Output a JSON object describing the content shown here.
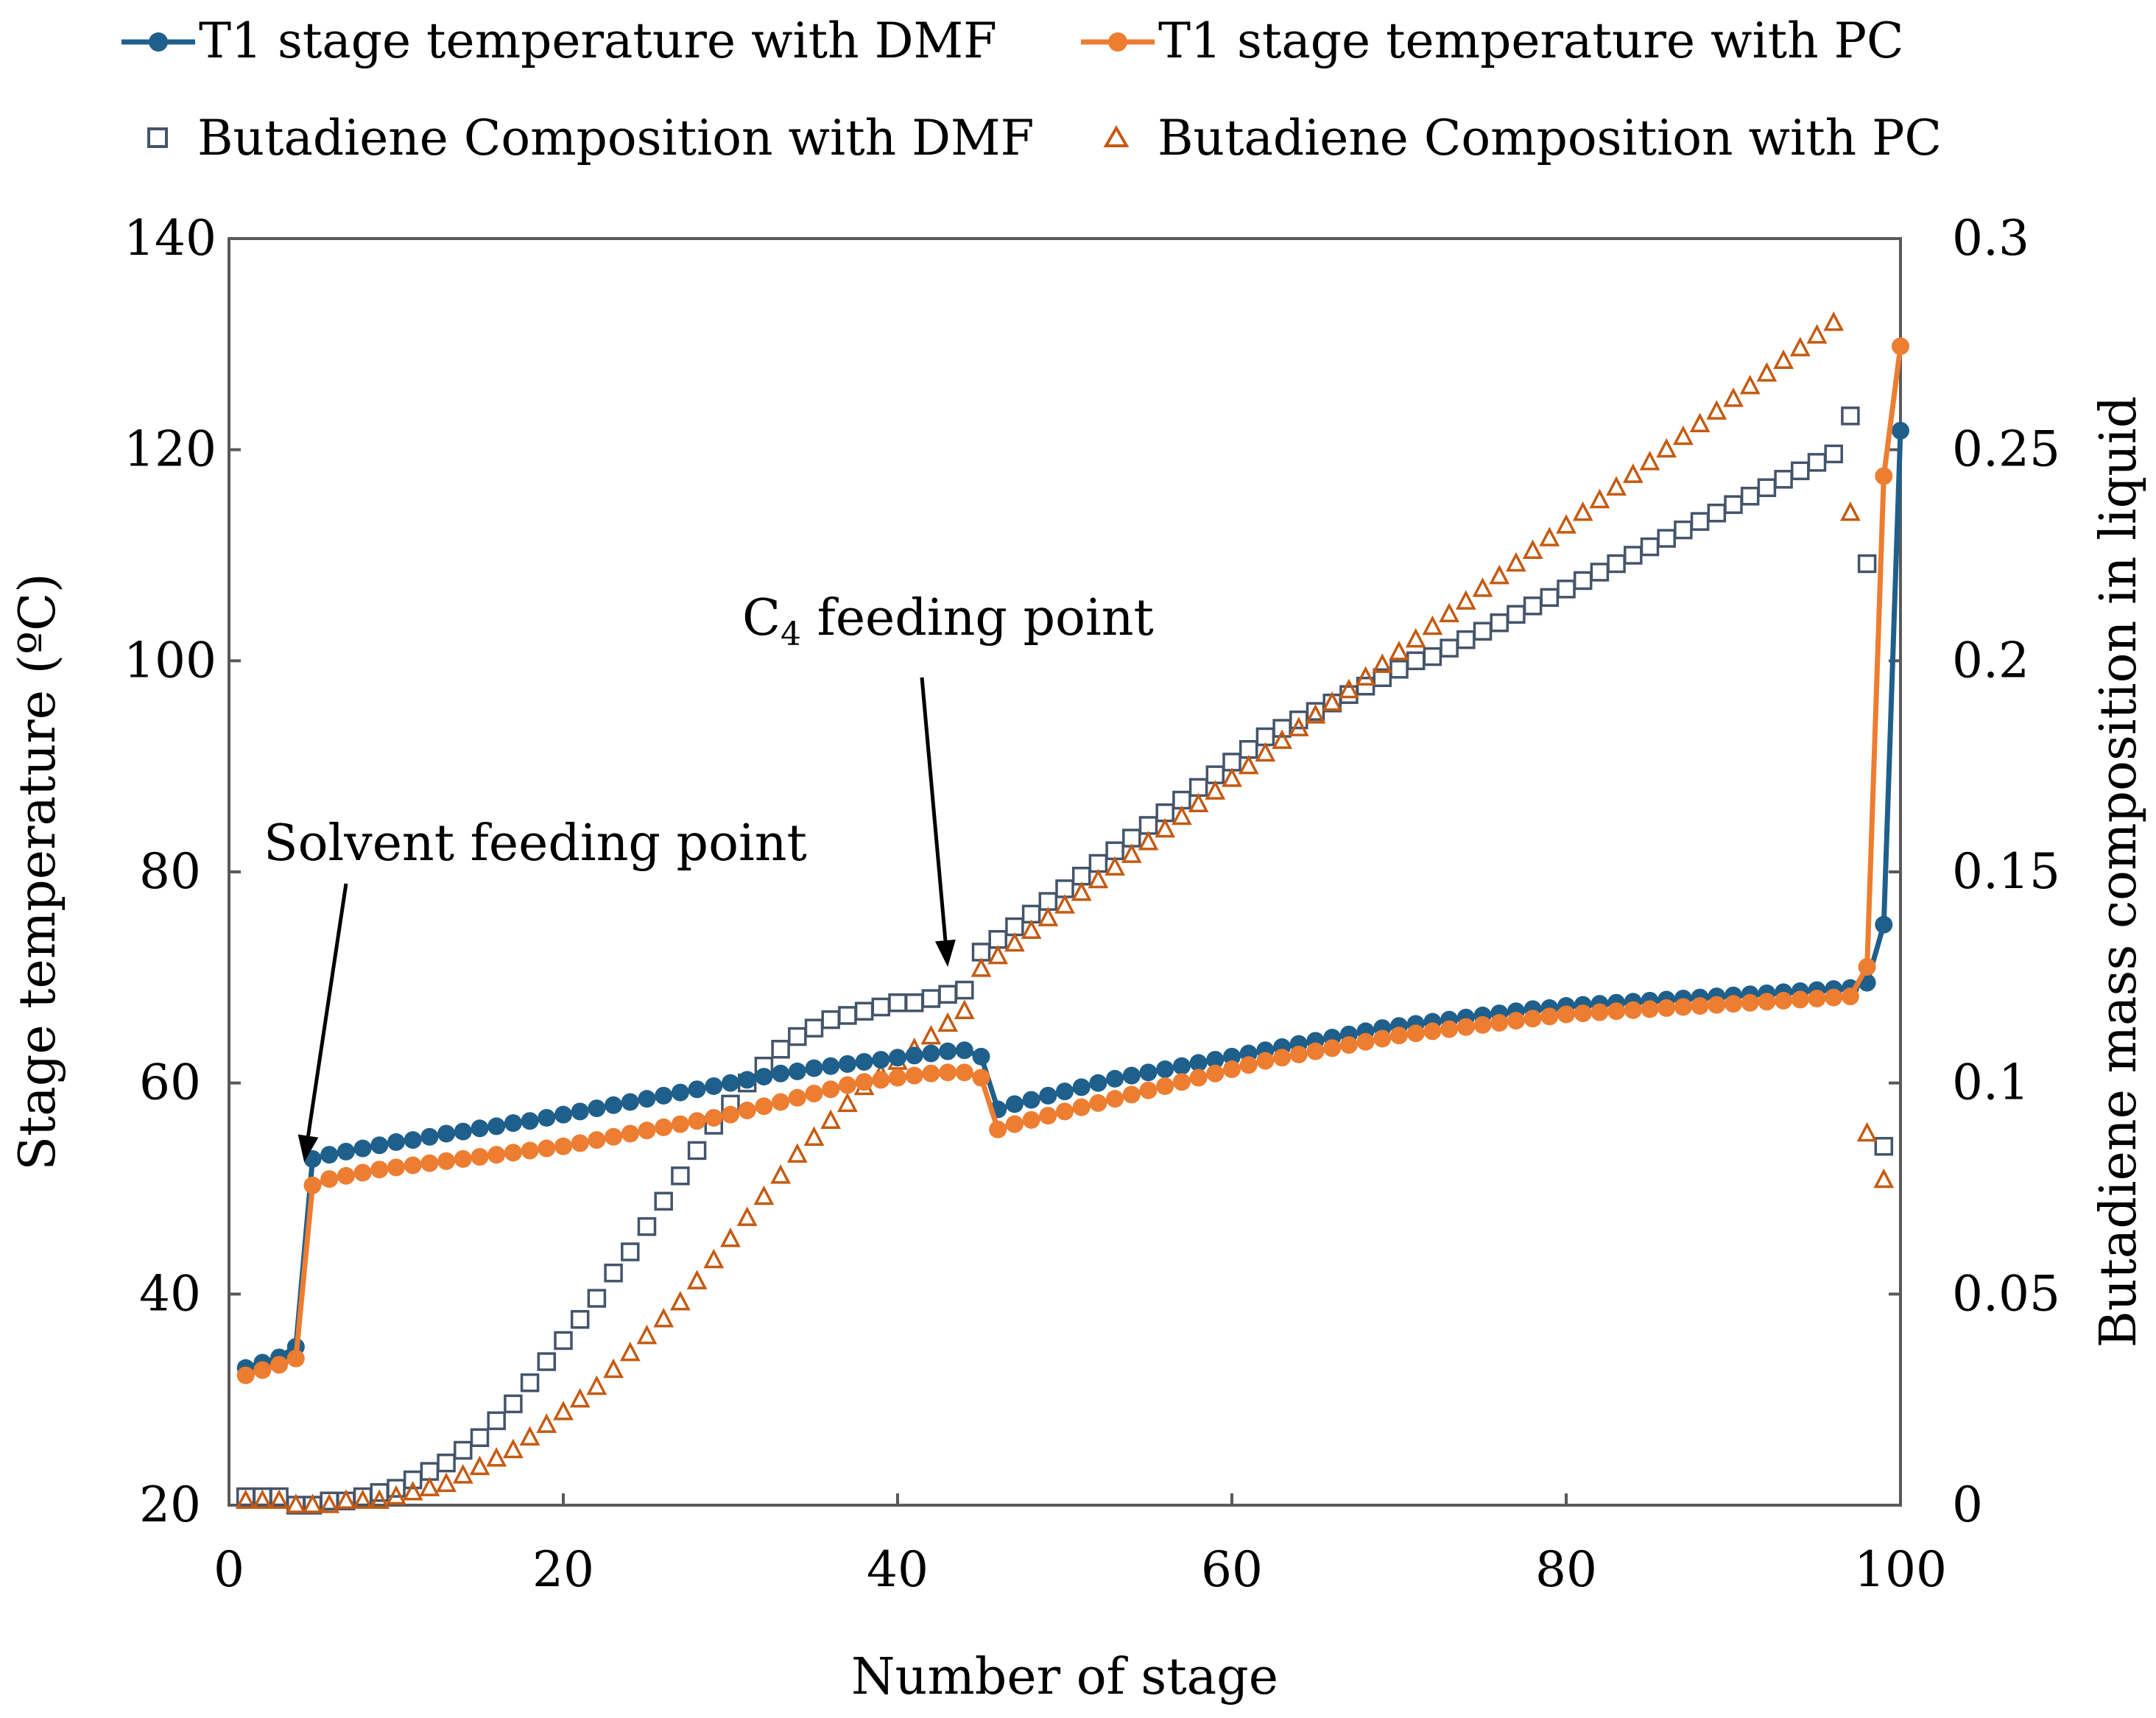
{
  "chart_data": {
    "type": "line",
    "xlabel": "Number of stage",
    "ylabel": "Stage temperature (ºC)",
    "y2label": "Butadiene mass composition in liquid",
    "xlim": [
      0,
      100
    ],
    "ylim": [
      20,
      140
    ],
    "y2lim": [
      0,
      0.3
    ],
    "x_ticks": [
      "0",
      "20",
      "40",
      "60",
      "80",
      "100"
    ],
    "y_ticks": [
      "20",
      "40",
      "60",
      "80",
      "100",
      "120",
      "140"
    ],
    "y2_ticks": [
      "0",
      "0.05",
      "0.1",
      "0.15",
      "0.2",
      "0.25",
      "0.3"
    ],
    "legend_placement": "top",
    "colors": {
      "dmf_temp": "#1f5f8b",
      "pc_temp": "#ed7d31",
      "dmf_comp": "#44546a",
      "pc_comp": "#c55a11"
    },
    "series": [
      {
        "name": "T1 stage temperature with DMF",
        "axis": "left",
        "style": "line-marker",
        "x": [
          1,
          2,
          3,
          4,
          5,
          6,
          7,
          8,
          9,
          10,
          11,
          12,
          13,
          14,
          15,
          16,
          17,
          18,
          19,
          20,
          21,
          22,
          23,
          24,
          25,
          26,
          27,
          28,
          29,
          30,
          31,
          32,
          33,
          34,
          35,
          36,
          37,
          38,
          39,
          40,
          41,
          42,
          43,
          44,
          45,
          46,
          47,
          48,
          49,
          50,
          51,
          52,
          53,
          54,
          55,
          56,
          57,
          58,
          59,
          60,
          61,
          62,
          63,
          64,
          65,
          66,
          67,
          68,
          69,
          70,
          71,
          72,
          73,
          74,
          75,
          76,
          77,
          78,
          79,
          80,
          81,
          82,
          83,
          84,
          85,
          86,
          87,
          88,
          89,
          90,
          91,
          92,
          93,
          94,
          95,
          96,
          97,
          98,
          99,
          100
        ],
        "values": [
          33.0,
          33.5,
          34.0,
          35.0,
          52.8,
          53.2,
          53.5,
          53.8,
          54.1,
          54.4,
          54.6,
          54.9,
          55.2,
          55.4,
          55.7,
          55.9,
          56.2,
          56.4,
          56.7,
          57.0,
          57.3,
          57.6,
          57.9,
          58.2,
          58.5,
          58.8,
          59.1,
          59.4,
          59.7,
          60.0,
          60.3,
          60.6,
          60.9,
          61.1,
          61.4,
          61.6,
          61.8,
          62.0,
          62.2,
          62.4,
          62.6,
          62.8,
          63.0,
          63.1,
          62.5,
          57.5,
          58.0,
          58.4,
          58.8,
          59.2,
          59.6,
          60.0,
          60.4,
          60.7,
          61.0,
          61.3,
          61.6,
          61.9,
          62.2,
          62.5,
          62.8,
          63.1,
          63.4,
          63.7,
          64.0,
          64.3,
          64.6,
          64.9,
          65.2,
          65.4,
          65.6,
          65.8,
          66.0,
          66.2,
          66.4,
          66.6,
          66.8,
          67.0,
          67.1,
          67.3,
          67.4,
          67.5,
          67.6,
          67.7,
          67.8,
          67.9,
          68.0,
          68.1,
          68.2,
          68.3,
          68.4,
          68.5,
          68.6,
          68.7,
          68.8,
          68.9,
          69.0,
          69.5,
          75.0,
          121.8
        ]
      },
      {
        "name": "T1 stage temperature with PC",
        "axis": "left",
        "style": "line-marker",
        "x": [
          1,
          2,
          3,
          4,
          5,
          6,
          7,
          8,
          9,
          10,
          11,
          12,
          13,
          14,
          15,
          16,
          17,
          18,
          19,
          20,
          21,
          22,
          23,
          24,
          25,
          26,
          27,
          28,
          29,
          30,
          31,
          32,
          33,
          34,
          35,
          36,
          37,
          38,
          39,
          40,
          41,
          42,
          43,
          44,
          45,
          46,
          47,
          48,
          49,
          50,
          51,
          52,
          53,
          54,
          55,
          56,
          57,
          58,
          59,
          60,
          61,
          62,
          63,
          64,
          65,
          66,
          67,
          68,
          69,
          70,
          71,
          72,
          73,
          74,
          75,
          76,
          77,
          78,
          79,
          80,
          81,
          82,
          83,
          84,
          85,
          86,
          87,
          88,
          89,
          90,
          91,
          92,
          93,
          94,
          95,
          96,
          97,
          98,
          99,
          100
        ],
        "values": [
          32.3,
          32.8,
          33.3,
          33.9,
          50.3,
          50.9,
          51.2,
          51.5,
          51.8,
          52.0,
          52.2,
          52.4,
          52.6,
          52.8,
          53.0,
          53.2,
          53.4,
          53.6,
          53.8,
          54.0,
          54.3,
          54.6,
          54.9,
          55.2,
          55.5,
          55.8,
          56.1,
          56.4,
          56.7,
          57.0,
          57.4,
          57.8,
          58.2,
          58.6,
          59.0,
          59.4,
          59.8,
          60.1,
          60.3,
          60.5,
          60.7,
          60.9,
          61.0,
          61.0,
          60.5,
          55.6,
          56.1,
          56.5,
          56.9,
          57.3,
          57.7,
          58.1,
          58.5,
          58.9,
          59.3,
          59.7,
          60.1,
          60.5,
          60.9,
          61.3,
          61.7,
          62.1,
          62.4,
          62.7,
          63.0,
          63.3,
          63.6,
          63.9,
          64.2,
          64.5,
          64.7,
          64.9,
          65.1,
          65.3,
          65.5,
          65.7,
          65.9,
          66.1,
          66.3,
          66.5,
          66.6,
          66.7,
          66.8,
          66.9,
          67.0,
          67.1,
          67.2,
          67.3,
          67.4,
          67.5,
          67.6,
          67.7,
          67.8,
          67.9,
          68.0,
          68.1,
          68.2,
          71.0,
          117.5,
          129.8
        ]
      },
      {
        "name": "Butadiene Composition with DMF",
        "axis": "right",
        "style": "marker-square",
        "x": [
          1,
          2,
          3,
          4,
          5,
          6,
          7,
          8,
          9,
          10,
          11,
          12,
          13,
          14,
          15,
          16,
          17,
          18,
          19,
          20,
          21,
          22,
          23,
          24,
          25,
          26,
          27,
          28,
          29,
          30,
          31,
          32,
          33,
          34,
          35,
          36,
          37,
          38,
          39,
          40,
          41,
          42,
          43,
          44,
          45,
          46,
          47,
          48,
          49,
          50,
          51,
          52,
          53,
          54,
          55,
          56,
          57,
          58,
          59,
          60,
          61,
          62,
          63,
          64,
          65,
          66,
          67,
          68,
          69,
          70,
          71,
          72,
          73,
          74,
          75,
          76,
          77,
          78,
          79,
          80,
          81,
          82,
          83,
          84,
          85,
          86,
          87,
          88,
          89,
          90,
          91,
          92,
          93,
          94,
          95,
          96,
          97,
          98,
          99
        ],
        "values": [
          0.002,
          0.002,
          0.002,
          0.0,
          0.0,
          0.001,
          0.001,
          0.002,
          0.003,
          0.004,
          0.006,
          0.008,
          0.01,
          0.013,
          0.016,
          0.02,
          0.024,
          0.029,
          0.034,
          0.039,
          0.044,
          0.049,
          0.055,
          0.06,
          0.066,
          0.072,
          0.078,
          0.084,
          0.09,
          0.095,
          0.1,
          0.104,
          0.108,
          0.111,
          0.113,
          0.115,
          0.116,
          0.117,
          0.118,
          0.119,
          0.119,
          0.12,
          0.121,
          0.122,
          0.131,
          0.134,
          0.137,
          0.14,
          0.143,
          0.146,
          0.149,
          0.152,
          0.155,
          0.158,
          0.161,
          0.164,
          0.167,
          0.17,
          0.173,
          0.176,
          0.179,
          0.182,
          0.184,
          0.186,
          0.188,
          0.19,
          0.192,
          0.194,
          0.196,
          0.198,
          0.2,
          0.201,
          0.203,
          0.205,
          0.207,
          0.209,
          0.211,
          0.213,
          0.215,
          0.217,
          0.219,
          0.221,
          0.223,
          0.225,
          0.227,
          0.229,
          0.231,
          0.233,
          0.235,
          0.237,
          0.239,
          0.241,
          0.243,
          0.245,
          0.247,
          0.249,
          0.258,
          0.223,
          0.085
        ]
      },
      {
        "name": "Butadiene Composition with PC",
        "axis": "right",
        "style": "marker-triangle",
        "x": [
          1,
          2,
          3,
          4,
          5,
          6,
          7,
          8,
          9,
          10,
          11,
          12,
          13,
          14,
          15,
          16,
          17,
          18,
          19,
          20,
          21,
          22,
          23,
          24,
          25,
          26,
          27,
          28,
          29,
          30,
          31,
          32,
          33,
          34,
          35,
          36,
          37,
          38,
          39,
          40,
          41,
          42,
          43,
          44,
          45,
          46,
          47,
          48,
          49,
          50,
          51,
          52,
          53,
          54,
          55,
          56,
          57,
          58,
          59,
          60,
          61,
          62,
          63,
          64,
          65,
          66,
          67,
          68,
          69,
          70,
          71,
          72,
          73,
          74,
          75,
          76,
          77,
          78,
          79,
          80,
          81,
          82,
          83,
          84,
          85,
          86,
          87,
          88,
          89,
          90,
          91,
          92,
          93,
          94,
          95,
          96,
          97,
          98,
          99
        ],
        "values": [
          0.001,
          0.001,
          0.001,
          0.0,
          0.0,
          0.0,
          0.001,
          0.001,
          0.001,
          0.002,
          0.003,
          0.004,
          0.005,
          0.007,
          0.009,
          0.011,
          0.013,
          0.016,
          0.019,
          0.022,
          0.025,
          0.028,
          0.032,
          0.036,
          0.04,
          0.044,
          0.048,
          0.053,
          0.058,
          0.063,
          0.068,
          0.073,
          0.078,
          0.083,
          0.087,
          0.091,
          0.095,
          0.099,
          0.102,
          0.105,
          0.108,
          0.111,
          0.114,
          0.117,
          0.127,
          0.13,
          0.133,
          0.136,
          0.139,
          0.142,
          0.145,
          0.148,
          0.151,
          0.154,
          0.157,
          0.16,
          0.163,
          0.166,
          0.169,
          0.172,
          0.175,
          0.178,
          0.181,
          0.184,
          0.187,
          0.19,
          0.193,
          0.196,
          0.199,
          0.202,
          0.205,
          0.208,
          0.211,
          0.214,
          0.217,
          0.22,
          0.223,
          0.226,
          0.229,
          0.232,
          0.235,
          0.238,
          0.241,
          0.244,
          0.247,
          0.25,
          0.253,
          0.256,
          0.259,
          0.262,
          0.265,
          0.268,
          0.271,
          0.274,
          0.277,
          0.28,
          0.235,
          0.088,
          0.077
        ]
      }
    ],
    "annotations": [
      {
        "text": "Solvent feeding point",
        "points_to": {
          "x": 4.5,
          "y": 52.5
        }
      },
      {
        "text_main": "C",
        "text_sub": "4",
        "text_rest": " feeding point",
        "points_to": {
          "x": 43,
          "y": 71
        }
      }
    ]
  }
}
